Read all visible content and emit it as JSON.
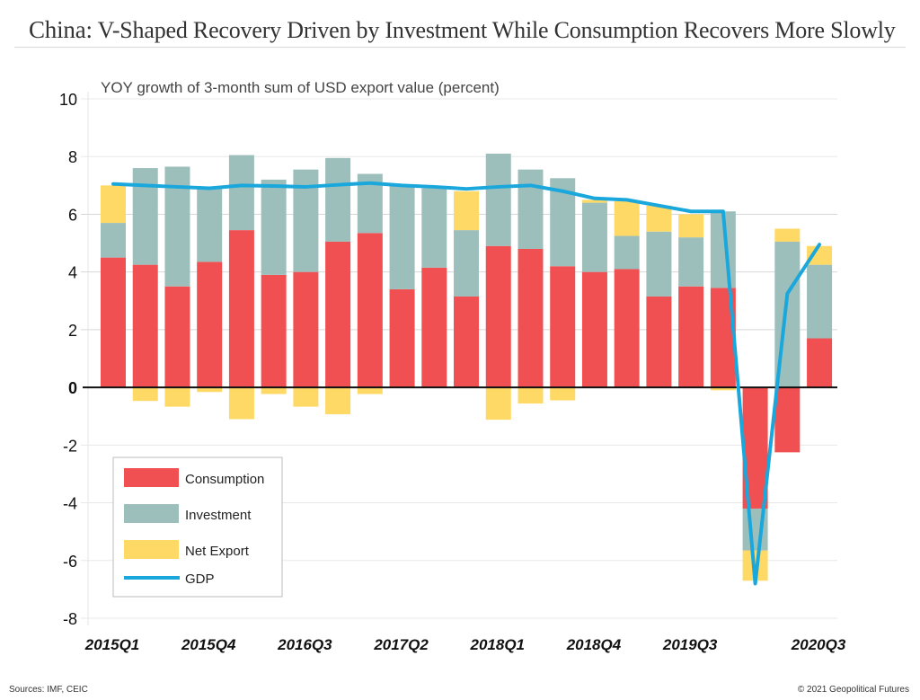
{
  "header": {
    "title_lead": "China:",
    "title_rest": "V-Shaped Recovery Driven by Investment While Consumption Recovers More Slowly"
  },
  "footer": {
    "sources": "Sources: IMF, CEIC",
    "copyright": "© 2021 Geopolitical Futures"
  },
  "colors": {
    "consumption": "#f05052",
    "investment": "#9dbfbc",
    "net_export": "#ffd966",
    "gdp": "#1aa7dc"
  },
  "chart_data": {
    "type": "bar",
    "stacked": true,
    "title": "China: V-Shaped Recovery Driven by Investment While Consumption Recovers More Slowly",
    "subtitle": "YOY growth of 3-month sum of USD export value (percent)",
    "xlabel": "",
    "ylabel": "",
    "ylim": [
      -8,
      10
    ],
    "yticks": [
      10,
      8,
      6,
      4,
      2,
      0,
      -2,
      -4,
      -6,
      -8
    ],
    "grid": true,
    "legend_position": "bottom-left",
    "categories": [
      "2015Q1",
      "2015Q2",
      "2015Q3",
      "2015Q4",
      "2016Q1",
      "2016Q2",
      "2016Q3",
      "2016Q4",
      "2017Q1",
      "2017Q2",
      "2017Q3",
      "2017Q4",
      "2018Q1",
      "2018Q2",
      "2018Q3",
      "2018Q4",
      "2019Q1",
      "2019Q2",
      "2019Q3",
      "2019Q4",
      "2020Q1",
      "2020Q2",
      "2020Q3"
    ],
    "xtick_labels": [
      {
        "index": 0,
        "label": "2015Q1"
      },
      {
        "index": 3,
        "label": "2015Q4"
      },
      {
        "index": 6,
        "label": "2016Q3"
      },
      {
        "index": 9,
        "label": "2017Q2"
      },
      {
        "index": 12,
        "label": "2018Q1"
      },
      {
        "index": 15,
        "label": "2018Q4"
      },
      {
        "index": 18,
        "label": "2019Q3"
      },
      {
        "index": 22,
        "label": "2020Q3"
      }
    ],
    "series": [
      {
        "name": "Consumption",
        "kind": "bar",
        "values": [
          4.5,
          4.25,
          3.5,
          4.35,
          5.45,
          3.9,
          4.0,
          5.05,
          5.35,
          3.4,
          4.15,
          3.15,
          4.9,
          4.8,
          4.2,
          4.0,
          4.1,
          3.15,
          3.5,
          3.45,
          -4.2,
          -2.25,
          1.7
        ]
      },
      {
        "name": "Investment",
        "kind": "bar",
        "values": [
          1.2,
          3.35,
          4.15,
          2.55,
          2.6,
          3.3,
          3.55,
          2.9,
          2.05,
          3.6,
          2.75,
          2.3,
          3.2,
          2.75,
          3.05,
          2.4,
          1.15,
          2.25,
          1.7,
          2.65,
          -1.45,
          5.05,
          2.55
        ]
      },
      {
        "name": "Net Export",
        "kind": "bar",
        "values": [
          1.3,
          -0.47,
          -0.67,
          -0.16,
          -1.1,
          -0.23,
          -0.67,
          -0.93,
          -0.23,
          0.0,
          0.0,
          1.35,
          -1.12,
          -0.56,
          -0.45,
          0.1,
          1.2,
          0.9,
          0.8,
          -0.1,
          -1.05,
          0.45,
          0.65
        ]
      },
      {
        "name": "GDP",
        "kind": "line",
        "values": [
          7.05,
          7.0,
          6.95,
          6.9,
          7.0,
          6.98,
          6.95,
          7.02,
          7.08,
          7.0,
          6.95,
          6.88,
          6.95,
          7.0,
          6.8,
          6.55,
          6.5,
          6.3,
          6.1,
          6.1,
          -6.8,
          3.25,
          4.95
        ]
      }
    ]
  }
}
